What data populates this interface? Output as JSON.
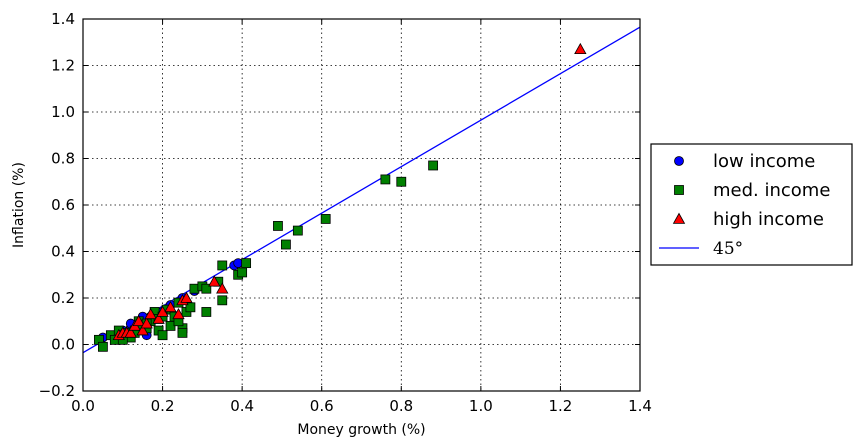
{
  "chart_data": {
    "type": "scatter",
    "xlabel": "Money growth (%)",
    "ylabel": "Inflation (%)",
    "xlim": [
      0.0,
      1.4
    ],
    "ylim": [
      -0.2,
      1.4
    ],
    "x_ticks": [
      "0.0",
      "0.2",
      "0.4",
      "0.6",
      "0.8",
      "1.0",
      "1.2",
      "1.4"
    ],
    "y_ticks": [
      "−0.2",
      "0.0",
      "0.2",
      "0.4",
      "0.6",
      "0.8",
      "1.0",
      "1.2",
      "1.4"
    ],
    "x_tick_values": [
      0.0,
      0.2,
      0.4,
      0.6,
      0.8,
      1.0,
      1.2,
      1.4
    ],
    "y_tick_values": [
      -0.2,
      0.0,
      0.2,
      0.4,
      0.6,
      0.8,
      1.0,
      1.2,
      1.4
    ],
    "grid": true,
    "legend_position": "right-outside",
    "series": [
      {
        "name": "low income",
        "marker": "circle",
        "color": "#0000ff",
        "points": [
          [
            0.05,
            0.03
          ],
          [
            0.08,
            0.04
          ],
          [
            0.1,
            0.06
          ],
          [
            0.11,
            0.05
          ],
          [
            0.12,
            0.07
          ],
          [
            0.13,
            0.08
          ],
          [
            0.14,
            0.09
          ],
          [
            0.15,
            0.1
          ],
          [
            0.16,
            0.04
          ],
          [
            0.17,
            0.12
          ],
          [
            0.18,
            0.13
          ],
          [
            0.2,
            0.14
          ],
          [
            0.22,
            0.17
          ],
          [
            0.25,
            0.2
          ],
          [
            0.28,
            0.23
          ],
          [
            0.38,
            0.34
          ],
          [
            0.39,
            0.35
          ],
          [
            0.09,
            0.05
          ],
          [
            0.12,
            0.09
          ],
          [
            0.15,
            0.12
          ]
        ]
      },
      {
        "name": "med. income",
        "marker": "square",
        "color": "#008000",
        "points": [
          [
            0.04,
            0.02
          ],
          [
            0.05,
            -0.01
          ],
          [
            0.07,
            0.04
          ],
          [
            0.08,
            0.02
          ],
          [
            0.09,
            0.06
          ],
          [
            0.1,
            0.04
          ],
          [
            0.11,
            0.05
          ],
          [
            0.12,
            0.03
          ],
          [
            0.13,
            0.06
          ],
          [
            0.14,
            0.1
          ],
          [
            0.15,
            0.08
          ],
          [
            0.16,
            0.07
          ],
          [
            0.17,
            0.1
          ],
          [
            0.18,
            0.14
          ],
          [
            0.19,
            0.06
          ],
          [
            0.19,
            0.11
          ],
          [
            0.2,
            0.04
          ],
          [
            0.21,
            0.15
          ],
          [
            0.22,
            0.08
          ],
          [
            0.23,
            0.12
          ],
          [
            0.24,
            0.18
          ],
          [
            0.25,
            0.07
          ],
          [
            0.25,
            0.05
          ],
          [
            0.26,
            0.14
          ],
          [
            0.27,
            0.16
          ],
          [
            0.28,
            0.24
          ],
          [
            0.3,
            0.25
          ],
          [
            0.31,
            0.14
          ],
          [
            0.31,
            0.24
          ],
          [
            0.34,
            0.27
          ],
          [
            0.35,
            0.19
          ],
          [
            0.35,
            0.34
          ],
          [
            0.39,
            0.3
          ],
          [
            0.4,
            0.31
          ],
          [
            0.41,
            0.35
          ],
          [
            0.49,
            0.51
          ],
          [
            0.51,
            0.43
          ],
          [
            0.54,
            0.49
          ],
          [
            0.61,
            0.54
          ],
          [
            0.76,
            0.71
          ],
          [
            0.8,
            0.7
          ],
          [
            0.88,
            0.77
          ],
          [
            0.1,
            0.02
          ],
          [
            0.13,
            0.05
          ],
          [
            0.16,
            0.09
          ],
          [
            0.2,
            0.12
          ],
          [
            0.24,
            0.1
          ]
        ]
      },
      {
        "name": "high income",
        "marker": "triangle",
        "color": "#ff0000",
        "points": [
          [
            0.09,
            0.04
          ],
          [
            0.1,
            0.05
          ],
          [
            0.11,
            0.05
          ],
          [
            0.12,
            0.05
          ],
          [
            0.13,
            0.08
          ],
          [
            0.14,
            0.1
          ],
          [
            0.15,
            0.06
          ],
          [
            0.16,
            0.09
          ],
          [
            0.17,
            0.13
          ],
          [
            0.19,
            0.11
          ],
          [
            0.2,
            0.14
          ],
          [
            0.22,
            0.16
          ],
          [
            0.24,
            0.13
          ],
          [
            0.25,
            0.19
          ],
          [
            0.26,
            0.2
          ],
          [
            0.33,
            0.27
          ],
          [
            0.35,
            0.24
          ],
          [
            1.25,
            1.27
          ]
        ]
      }
    ],
    "reference_line": {
      "name": "45°",
      "color": "#0000ff",
      "x": [
        0.0,
        1.4
      ],
      "y": [
        -0.035,
        1.365
      ]
    }
  }
}
